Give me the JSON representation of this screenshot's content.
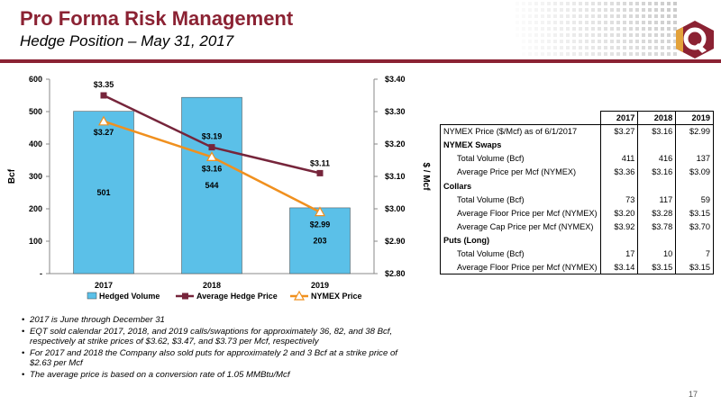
{
  "header": {
    "title": "Pro Forma Risk Management",
    "subtitle": "Hedge Position – May 31, 2017"
  },
  "brand": {
    "accent": "#8b2233",
    "logo_color": "#8b2233",
    "logo_accent": "#e3a23a"
  },
  "chart_data": {
    "type": "bar",
    "categories": [
      "2017",
      "2018",
      "2019"
    ],
    "series": [
      {
        "name": "Hedged Volume",
        "kind": "bar",
        "axis": "left",
        "color": "#5bc0e8",
        "values": [
          501,
          544,
          203
        ],
        "labels": [
          "501",
          "544",
          "203"
        ]
      },
      {
        "name": "Average Hedge Price",
        "kind": "line",
        "axis": "right",
        "color": "#76253b",
        "marker": "square",
        "values": [
          3.35,
          3.19,
          3.11
        ],
        "labels": [
          "$3.35",
          "$3.19",
          "$3.11"
        ]
      },
      {
        "name": "NYMEX Price",
        "kind": "line",
        "axis": "right",
        "color": "#f0901e",
        "marker": "triangle",
        "values": [
          3.27,
          3.16,
          2.99
        ],
        "labels": [
          "$3.27",
          "$3.16",
          "$2.99"
        ]
      }
    ],
    "y_left": {
      "label": "Bcf",
      "ylim": [
        0,
        600
      ],
      "ticks": [
        "-",
        "100",
        "200",
        "300",
        "400",
        "500",
        "600"
      ]
    },
    "y_right": {
      "label": "$ / Mcf",
      "ylim": [
        2.8,
        3.4
      ],
      "ticks": [
        "$2.80",
        "$2.90",
        "$3.00",
        "$3.10",
        "$3.20",
        "$3.30",
        "$3.40"
      ]
    },
    "grid": false,
    "legend": "bottom"
  },
  "table": {
    "columns": [
      "2017",
      "2018",
      "2019"
    ],
    "rows": [
      {
        "label": "NYMEX Price ($/Mcf) as of 6/1/2017",
        "values": [
          "$3.27",
          "$3.16",
          "$2.99"
        ]
      },
      {
        "label": "NYMEX Swaps",
        "section": true
      },
      {
        "label": "Total Volume (Bcf)",
        "indent": true,
        "values": [
          "411",
          "416",
          "137"
        ]
      },
      {
        "label": "Average Price per Mcf (NYMEX)",
        "indent": true,
        "values": [
          "$3.36",
          "$3.16",
          "$3.09"
        ]
      },
      {
        "label": "Collars",
        "section": true
      },
      {
        "label": "Total Volume (Bcf)",
        "indent": true,
        "values": [
          "73",
          "117",
          "59"
        ]
      },
      {
        "label": "Average Floor Price per Mcf (NYMEX)",
        "indent": true,
        "values": [
          "$3.20",
          "$3.28",
          "$3.15"
        ]
      },
      {
        "label": "Average Cap Price per Mcf (NYMEX)",
        "indent": true,
        "values": [
          "$3.92",
          "$3.78",
          "$3.70"
        ]
      },
      {
        "label": "Puts (Long)",
        "section": true
      },
      {
        "label": "Total Volume (Bcf)",
        "indent": true,
        "values": [
          "17",
          "10",
          "7"
        ]
      },
      {
        "label": "Average Floor Price per Mcf (NYMEX)",
        "indent": true,
        "values": [
          "$3.14",
          "$3.15",
          "$3.15"
        ]
      }
    ]
  },
  "notes": [
    "2017 is June through December 31",
    "EQT sold calendar 2017, 2018, and 2019 calls/swaptions for approximately 36, 82, and 38 Bcf, respectively at strike prices of $3.62, $3.47, and $3.73 per Mcf, respectively",
    "For 2017 and 2018 the Company also sold puts for approximately 2 and 3 Bcf at a strike price of $2.63 per Mcf",
    "The average price is based on a conversion rate of 1.05 MMBtu/Mcf"
  ],
  "footer": {
    "page": "17"
  }
}
